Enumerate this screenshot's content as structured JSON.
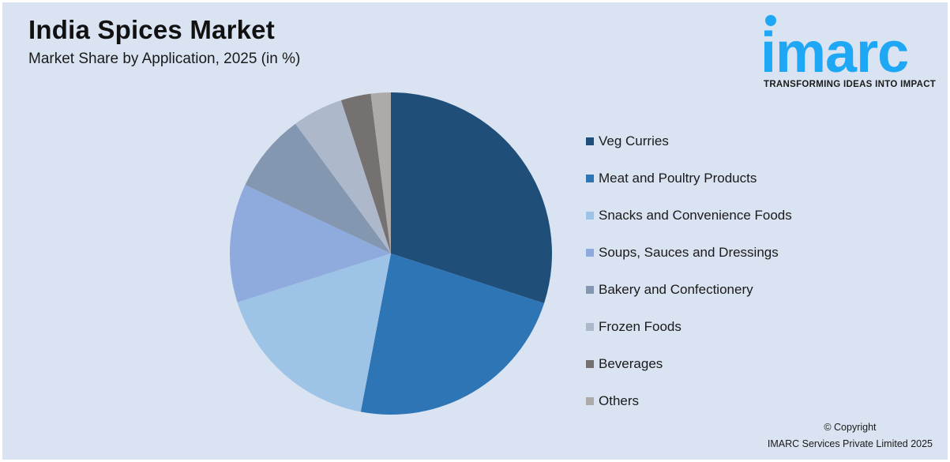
{
  "header": {
    "title": "India Spices Market",
    "subtitle": "Market Share by Application, 2025 (in %)"
  },
  "logo": {
    "word": "imarc",
    "tagline": "TRANSFORMING IDEAS INTO IMPACT",
    "color": "#1ea7f5"
  },
  "footer": {
    "line1": "© Copyright",
    "line2": "IMARC Services Private Limited 2025"
  },
  "legend": [
    {
      "label": "Veg Curries",
      "color": "#1f4e79"
    },
    {
      "label": "Meat and Poultry Products",
      "color": "#2e75b6"
    },
    {
      "label": "Snacks and Convenience Foods",
      "color": "#9dc3e6"
    },
    {
      "label": "Soups, Sauces and Dressings",
      "color": "#8faadc"
    },
    {
      "label": "Bakery and Confectionery",
      "color": "#8497b0"
    },
    {
      "label": "Frozen Foods",
      "color": "#adb9ca"
    },
    {
      "label": "Beverages",
      "color": "#767171"
    },
    {
      "label": "Others",
      "color": "#aeaaaa"
    }
  ],
  "chart_data": {
    "type": "pie",
    "title": "India Spices Market",
    "subtitle": "Market Share by Application, 2025 (in %)",
    "categories": [
      "Veg Curries",
      "Meat and Poultry Products",
      "Snacks and Convenience Foods",
      "Soups, Sauces and Dressings",
      "Bakery and Confectionery",
      "Frozen Foods",
      "Beverages",
      "Others"
    ],
    "values": [
      30.0,
      23.0,
      17.1,
      11.9,
      7.9,
      5.1,
      3.0,
      2.0
    ],
    "colors": [
      "#1f4e79",
      "#2e75b6",
      "#9dc3e6",
      "#8faadc",
      "#8497b0",
      "#adb9ca",
      "#767171",
      "#aeaaaa"
    ],
    "start_angle_deg": 0,
    "direction": "clockwise",
    "legend_position": "right",
    "data_labels": false
  }
}
